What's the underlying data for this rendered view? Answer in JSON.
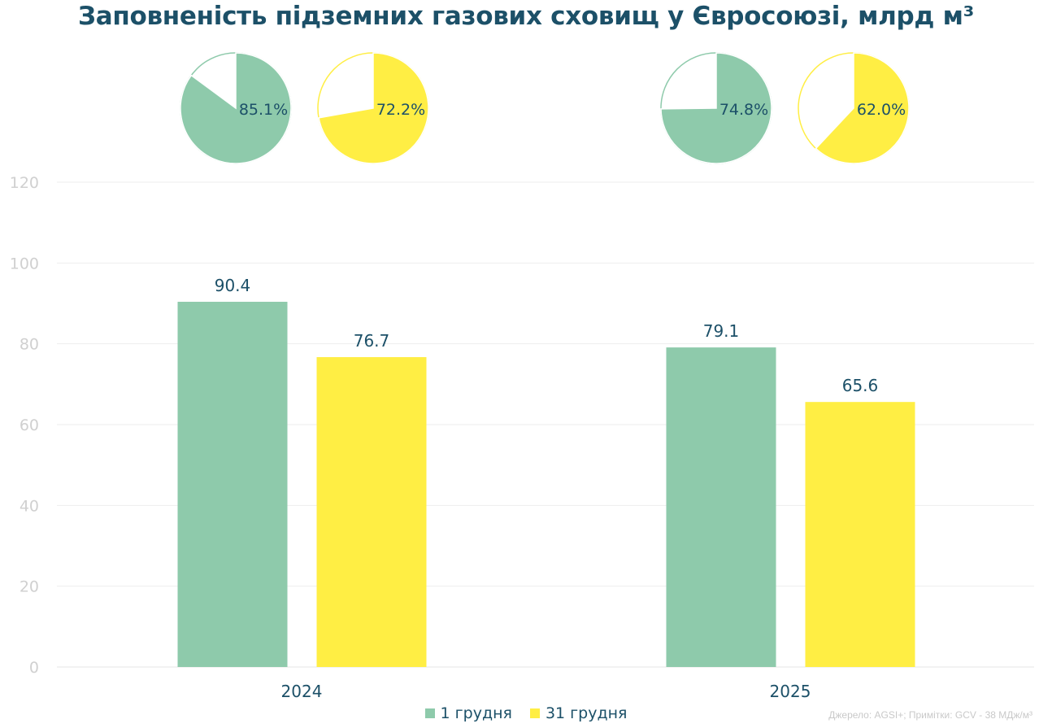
{
  "title": "Заповненість підземних газових сховищ у Євросоюзі, млрд м³",
  "source_note": "Джерело: AGSI+; Примітки: GCV - 38 МДж/м³",
  "colors": {
    "series1": "#8ecaab",
    "series2": "#ffee44",
    "text": "#1c5068",
    "grid": "#eeeeee",
    "axis_text": "#d0d0d0"
  },
  "legend": [
    {
      "label": "1 грудня",
      "color": "#8ecaab"
    },
    {
      "label": "31 грудня",
      "color": "#ffee44"
    }
  ],
  "chart_data": {
    "type": "bar",
    "title": "Заповненість підземних газових сховищ у Євросоюзі, млрд м³",
    "xlabel": "",
    "ylabel": "",
    "categories": [
      "2024",
      "2025"
    ],
    "series": [
      {
        "name": "1 грудня",
        "values": [
          90.4,
          79.1
        ],
        "fill_pct": [
          "85.1%",
          "74.8%"
        ]
      },
      {
        "name": "31 грудня",
        "values": [
          76.7,
          65.6
        ],
        "fill_pct": [
          "72.2%",
          "62.0%"
        ]
      }
    ],
    "ylim": [
      0,
      120
    ],
    "yticks": [
      "0",
      "20",
      "40",
      "60",
      "80",
      "100",
      "120"
    ],
    "data_labels": [
      [
        "90.4",
        "79.1"
      ],
      [
        "76.7",
        "65.6"
      ]
    ],
    "grid": true,
    "legend_position": "bottom-center",
    "pies": {
      "type": "pie",
      "labels": [
        [
          "85.1%",
          "74.8%"
        ],
        [
          "72.2%",
          "62.0%"
        ]
      ],
      "values": [
        [
          85.1,
          74.8
        ],
        [
          72.2,
          62.0
        ]
      ]
    }
  }
}
